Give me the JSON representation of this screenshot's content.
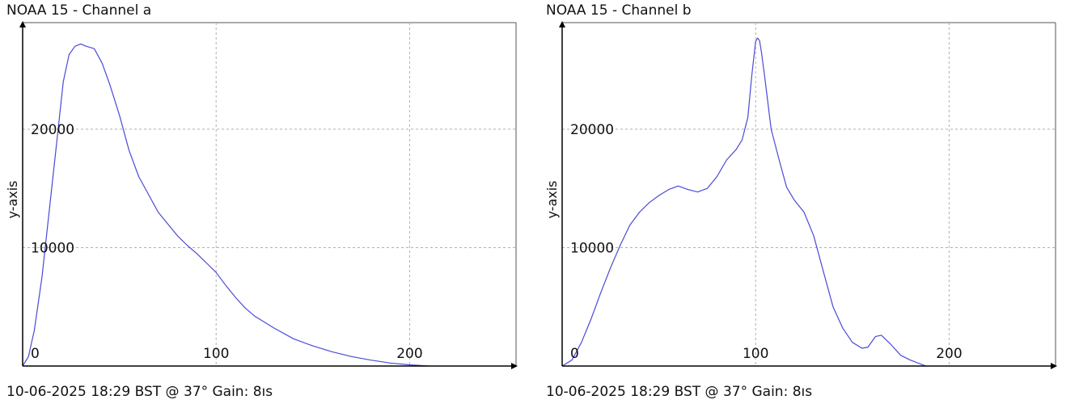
{
  "chart_data": [
    {
      "type": "line",
      "title": "NOAA 15 - Channel a",
      "ylabel": "y-axis",
      "xlabel": "",
      "footer": "10-06-2025 18:29 BST @ 37° Gain: 8ıs",
      "xlim": [
        0,
        255
      ],
      "ylim": [
        0,
        29000
      ],
      "x_ticks": [
        0,
        100,
        200
      ],
      "y_ticks": [
        10000,
        20000
      ],
      "grid": true,
      "colors": {
        "line": "#4a4ad6",
        "grid": "#b0b0b0",
        "axis": "#000000"
      },
      "series": [
        {
          "x": [
            0,
            3,
            6,
            10,
            14,
            18,
            21,
            24,
            27,
            30,
            33,
            37,
            41,
            45,
            50,
            55,
            60,
            65,
            70,
            75,
            80,
            85,
            90,
            95,
            100,
            105,
            110,
            115,
            120,
            130,
            140,
            150,
            160,
            170,
            180,
            190,
            200,
            210
          ],
          "y": [
            0,
            800,
            3000,
            7500,
            13500,
            19500,
            24000,
            26300,
            27000,
            27200,
            27000,
            26800,
            25600,
            23800,
            21200,
            18200,
            16000,
            14500,
            13000,
            12000,
            11000,
            10200,
            9500,
            8700,
            7900,
            6800,
            5800,
            4900,
            4200,
            3200,
            2300,
            1700,
            1200,
            800,
            500,
            250,
            100,
            0
          ]
        }
      ]
    },
    {
      "type": "line",
      "title": "NOAA 15 - Channel b",
      "ylabel": "y-axis",
      "xlabel": "",
      "footer": "10-06-2025 18:29 BST @ 37° Gain: 8ıs",
      "xlim": [
        0,
        255
      ],
      "ylim": [
        0,
        29000
      ],
      "x_ticks": [
        0,
        100,
        200
      ],
      "y_ticks": [
        10000,
        20000
      ],
      "grid": true,
      "colors": {
        "line": "#4a4ad6",
        "grid": "#b0b0b0",
        "axis": "#000000"
      },
      "series": [
        {
          "x": [
            0,
            5,
            10,
            15,
            20,
            25,
            30,
            35,
            40,
            45,
            50,
            55,
            60,
            65,
            70,
            75,
            80,
            85,
            90,
            93,
            96,
            98,
            100,
            101,
            102,
            103,
            105,
            108,
            112,
            116,
            120,
            125,
            130,
            135,
            140,
            145,
            150,
            155,
            158,
            162,
            165,
            170,
            175,
            180,
            188
          ],
          "y": [
            0,
            500,
            2000,
            4000,
            6200,
            8300,
            10200,
            11900,
            13000,
            13800,
            14400,
            14900,
            15200,
            14900,
            14700,
            15000,
            16000,
            17400,
            18300,
            19100,
            21000,
            24500,
            27400,
            27700,
            27500,
            26500,
            24000,
            20000,
            17500,
            15100,
            14000,
            13000,
            11000,
            8000,
            5000,
            3200,
            2000,
            1500,
            1600,
            2500,
            2600,
            1800,
            900,
            500,
            0
          ]
        }
      ]
    }
  ]
}
